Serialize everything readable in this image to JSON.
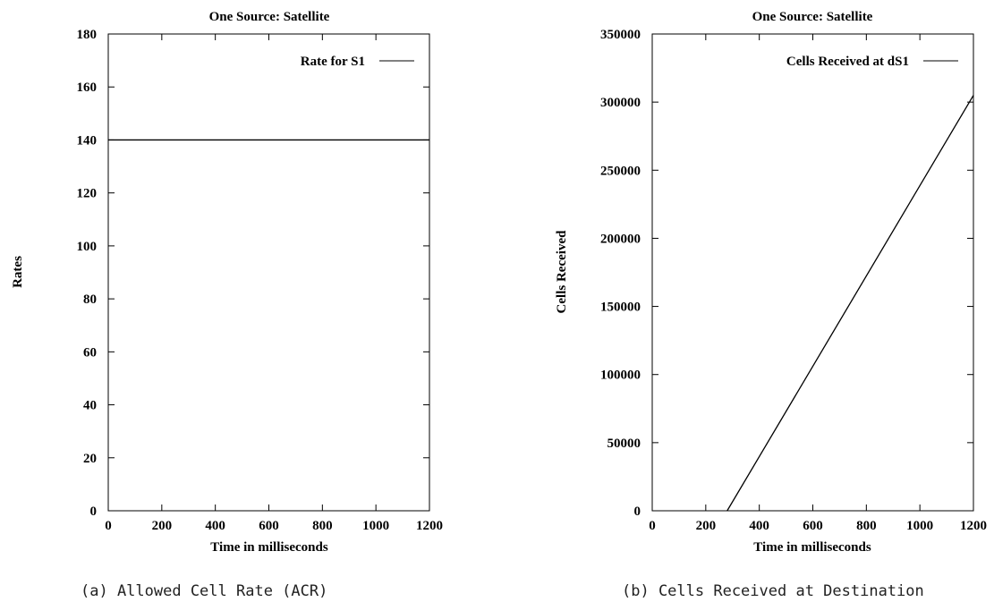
{
  "chart_data": [
    {
      "type": "line",
      "title": "One Source: Satellite",
      "xlabel": "Time in milliseconds",
      "ylabel": "Rates",
      "xlim": [
        0,
        1200
      ],
      "ylim": [
        0,
        180
      ],
      "xticks": [
        "0",
        "200",
        "400",
        "600",
        "800",
        "1000",
        "1200"
      ],
      "yticks": [
        "0",
        "20",
        "40",
        "60",
        "80",
        "100",
        "120",
        "140",
        "160",
        "180"
      ],
      "legend_position": "top-right",
      "series": [
        {
          "name": "Rate for S1",
          "x": [
            0,
            1200
          ],
          "y": [
            140,
            140
          ]
        }
      ],
      "caption": "(a) Allowed Cell Rate (ACR)"
    },
    {
      "type": "line",
      "title": "One Source: Satellite",
      "xlabel": "Time in milliseconds",
      "ylabel": "Cells Received",
      "xlim": [
        0,
        1200
      ],
      "ylim": [
        0,
        350000
      ],
      "xticks": [
        "0",
        "200",
        "400",
        "600",
        "800",
        "1000",
        "1200"
      ],
      "yticks": [
        "0",
        "50000",
        "100000",
        "150000",
        "200000",
        "250000",
        "300000",
        "350000"
      ],
      "legend_position": "top-right",
      "series": [
        {
          "name": "Cells Received at dS1",
          "x": [
            280,
            1200
          ],
          "y": [
            0,
            305000
          ]
        }
      ],
      "caption": "(b) Cells Received at Destination"
    }
  ]
}
